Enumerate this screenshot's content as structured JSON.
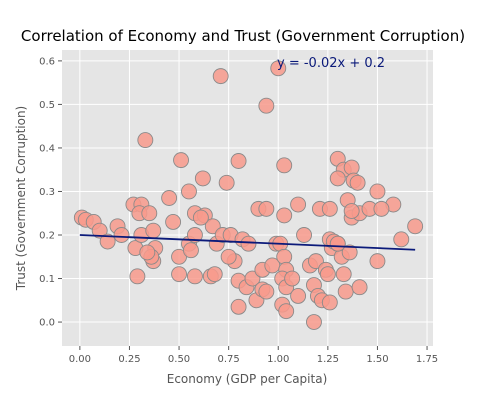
{
  "chart_data": {
    "type": "scatter",
    "title": "Correlation of Economy and Trust (Government Corruption)",
    "xlabel": "Economy (GDP per Capita)",
    "ylabel": "Trust (Government Corruption)",
    "xlim": [
      -0.09,
      1.78
    ],
    "ylim": [
      -0.055,
      0.625
    ],
    "x_ticks": [
      0.0,
      0.25,
      0.5,
      0.75,
      1.0,
      1.25,
      1.5,
      1.75
    ],
    "x_tick_labels": [
      "0.00",
      "0.25",
      "0.50",
      "0.75",
      "1.00",
      "1.25",
      "1.50",
      "1.75"
    ],
    "y_ticks": [
      0.0,
      0.1,
      0.2,
      0.3,
      0.4,
      0.5,
      0.6
    ],
    "y_tick_labels": [
      "0.0",
      "0.1",
      "0.2",
      "0.3",
      "0.4",
      "0.5",
      "0.6"
    ],
    "grid": true,
    "style": "ggplot",
    "colors": {
      "points": "#f89a8c",
      "point_edge": "#8a8a8a",
      "regression": "#0b1a7a",
      "annotation": "#0b1a7a",
      "panel": "#e5e5e5",
      "grid": "#ffffff"
    },
    "annotation": "y = -0.02x + 0.2",
    "regression": {
      "slope": -0.02,
      "intercept": 0.2,
      "x_range": [
        0.0,
        1.69
      ]
    },
    "points": [
      [
        0.71,
        0.565
      ],
      [
        0.94,
        0.497
      ],
      [
        0.33,
        0.418
      ],
      [
        1.0,
        0.583
      ],
      [
        0.51,
        0.372
      ],
      [
        0.8,
        0.37
      ],
      [
        1.03,
        0.36
      ],
      [
        1.3,
        0.375
      ],
      [
        0.62,
        0.33
      ],
      [
        0.74,
        0.32
      ],
      [
        1.33,
        0.35
      ],
      [
        1.37,
        0.355
      ],
      [
        1.3,
        0.33
      ],
      [
        1.38,
        0.325
      ],
      [
        1.4,
        0.32
      ],
      [
        0.45,
        0.285
      ],
      [
        0.55,
        0.3
      ],
      [
        1.1,
        0.27
      ],
      [
        1.5,
        0.3
      ],
      [
        1.35,
        0.28
      ],
      [
        0.27,
        0.27
      ],
      [
        0.31,
        0.27
      ],
      [
        0.3,
        0.25
      ],
      [
        0.35,
        0.25
      ],
      [
        0.58,
        0.25
      ],
      [
        0.63,
        0.245
      ],
      [
        0.67,
        0.22
      ],
      [
        0.9,
        0.26
      ],
      [
        0.94,
        0.26
      ],
      [
        1.03,
        0.245
      ],
      [
        1.21,
        0.26
      ],
      [
        1.26,
        0.26
      ],
      [
        1.37,
        0.24
      ],
      [
        1.41,
        0.25
      ],
      [
        1.46,
        0.26
      ],
      [
        1.58,
        0.27
      ],
      [
        1.52,
        0.26
      ],
      [
        1.37,
        0.255
      ],
      [
        0.01,
        0.24
      ],
      [
        0.03,
        0.235
      ],
      [
        0.07,
        0.23
      ],
      [
        0.1,
        0.21
      ],
      [
        0.14,
        0.185
      ],
      [
        0.19,
        0.22
      ],
      [
        0.21,
        0.2
      ],
      [
        0.28,
        0.17
      ],
      [
        0.31,
        0.2
      ],
      [
        0.37,
        0.21
      ],
      [
        0.38,
        0.17
      ],
      [
        0.37,
        0.14
      ],
      [
        0.36,
        0.15
      ],
      [
        0.34,
        0.16
      ],
      [
        0.47,
        0.23
      ],
      [
        0.5,
        0.15
      ],
      [
        0.5,
        0.11
      ],
      [
        0.55,
        0.18
      ],
      [
        0.56,
        0.165
      ],
      [
        0.58,
        0.105
      ],
      [
        0.58,
        0.2
      ],
      [
        0.61,
        0.24
      ],
      [
        0.66,
        0.105
      ],
      [
        0.68,
        0.11
      ],
      [
        0.69,
        0.18
      ],
      [
        0.72,
        0.2
      ],
      [
        0.76,
        0.2
      ],
      [
        0.78,
        0.14
      ],
      [
        0.75,
        0.15
      ],
      [
        0.8,
        0.095
      ],
      [
        0.82,
        0.19
      ],
      [
        0.85,
        0.18
      ],
      [
        0.8,
        0.035
      ],
      [
        0.84,
        0.08
      ],
      [
        0.87,
        0.1
      ],
      [
        0.89,
        0.05
      ],
      [
        0.92,
        0.075
      ],
      [
        0.92,
        0.12
      ],
      [
        0.94,
        0.07
      ],
      [
        0.97,
        0.13
      ],
      [
        0.99,
        0.18
      ],
      [
        1.01,
        0.18
      ],
      [
        1.03,
        0.15
      ],
      [
        1.04,
        0.12
      ],
      [
        1.02,
        0.1
      ],
      [
        1.04,
        0.08
      ],
      [
        1.07,
        0.1
      ],
      [
        1.02,
        0.04
      ],
      [
        1.04,
        0.025
      ],
      [
        1.1,
        0.06
      ],
      [
        1.13,
        0.2
      ],
      [
        1.16,
        0.13
      ],
      [
        1.19,
        0.14
      ],
      [
        1.18,
        0.085
      ],
      [
        1.2,
        0.06
      ],
      [
        1.22,
        0.05
      ],
      [
        1.24,
        0.12
      ],
      [
        1.25,
        0.11
      ],
      [
        1.27,
        0.17
      ],
      [
        1.26,
        0.19
      ],
      [
        1.28,
        0.185
      ],
      [
        1.3,
        0.18
      ],
      [
        1.32,
        0.15
      ],
      [
        1.33,
        0.11
      ],
      [
        1.34,
        0.07
      ],
      [
        1.36,
        0.16
      ],
      [
        1.41,
        0.08
      ],
      [
        1.5,
        0.14
      ],
      [
        1.62,
        0.19
      ],
      [
        1.69,
        0.22
      ],
      [
        1.18,
        0.0
      ],
      [
        1.26,
        0.045
      ],
      [
        1.3,
        0.18
      ],
      [
        0.29,
        0.105
      ]
    ]
  }
}
